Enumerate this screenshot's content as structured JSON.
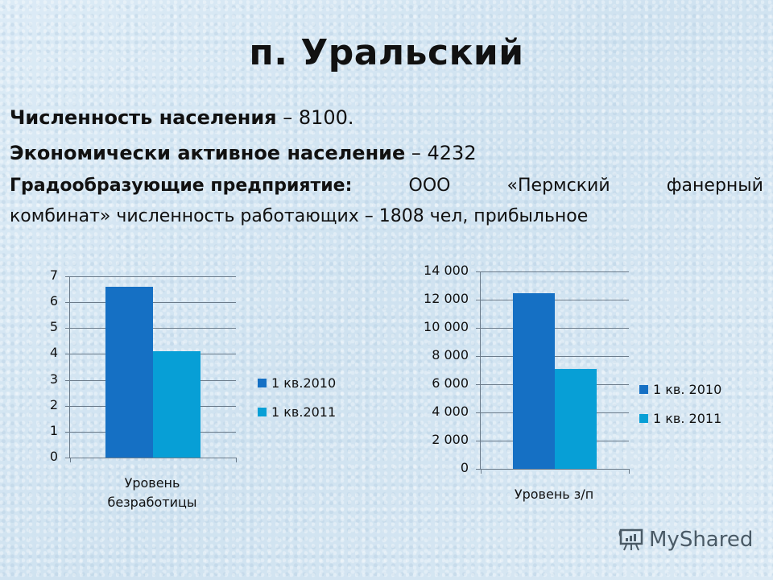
{
  "title": "п. Уральский",
  "facts": {
    "population_label": "Численность населения",
    "population_value": " – 8100.",
    "active_label": "Экономически активное население",
    "active_value": " – 4232",
    "enterprise_label": "Градообразующие предприятие:",
    "enterprise_words": [
      "ООО",
      "«Пермский",
      "фанерный"
    ],
    "enterprise_line2": "комбинат» численность работающих – 1808 чел, прибыльное"
  },
  "colors": {
    "series_2010": "#1570c4",
    "series_2011": "#079fd6",
    "grid": "#6b7b8a"
  },
  "chart_data": [
    {
      "type": "bar",
      "title": "",
      "categories": [
        "Уровень безработицы"
      ],
      "category_lines": [
        "Уровень",
        "безработицы"
      ],
      "series": [
        {
          "name": "1 кв.2010",
          "values": [
            6.6
          ]
        },
        {
          "name": "1 кв.2011",
          "values": [
            4.1
          ]
        }
      ],
      "yticks": [
        "0",
        "1",
        "2",
        "3",
        "4",
        "5",
        "6",
        "7"
      ],
      "ylim": [
        0,
        7
      ],
      "grid": true,
      "legend_position": "right",
      "xlabel": "",
      "ylabel": ""
    },
    {
      "type": "bar",
      "title": "",
      "categories": [
        "Уровень з/п"
      ],
      "category_lines": [
        "Уровень з/п"
      ],
      "series": [
        {
          "name": "1 кв. 2010",
          "values": [
            12450
          ]
        },
        {
          "name": "1 кв. 2011",
          "values": [
            7100
          ]
        }
      ],
      "yticks": [
        "0",
        "2 000",
        "4 000",
        "6 000",
        "8 000",
        "10 000",
        "12 000",
        "14 000"
      ],
      "ylim": [
        0,
        14000
      ],
      "grid": true,
      "legend_position": "right",
      "xlabel": "",
      "ylabel": ""
    }
  ],
  "watermark": {
    "text": "MyShared",
    "icon": "presentation-board-icon"
  }
}
